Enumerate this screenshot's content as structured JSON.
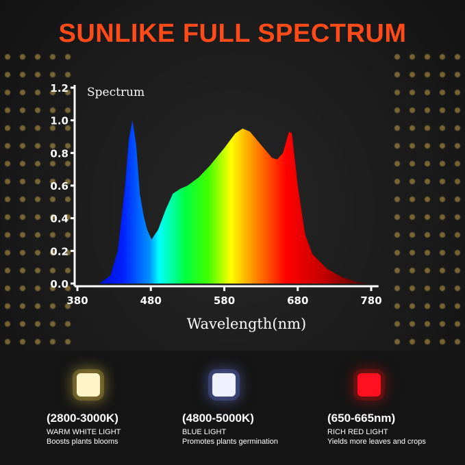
{
  "title": "SUNLIKE FULL SPECTRUM",
  "chart_data": {
    "type": "area",
    "title": "Spectrum",
    "xlabel": "Wavelength(nm)",
    "ylabel": "",
    "xlim": [
      380,
      790
    ],
    "ylim": [
      0,
      1.2
    ],
    "x_ticks": [
      "380",
      "480",
      "580",
      "680",
      "780"
    ],
    "y_ticks": [
      "0.0",
      "0.2",
      "0.4",
      "0.6",
      "0.8",
      "1.0",
      "1.2"
    ],
    "grid": false,
    "fill": "wavelength color gradient",
    "x": [
      410,
      425,
      435,
      445,
      450,
      455,
      460,
      465,
      470,
      475,
      481,
      490,
      500,
      510,
      520,
      530,
      545,
      560,
      580,
      595,
      605,
      615,
      630,
      645,
      652,
      660,
      668,
      672,
      680,
      690,
      700,
      720,
      740,
      760,
      775
    ],
    "y": [
      0,
      0.05,
      0.2,
      0.6,
      0.88,
      1.0,
      0.85,
      0.55,
      0.42,
      0.33,
      0.27,
      0.33,
      0.45,
      0.55,
      0.58,
      0.6,
      0.65,
      0.72,
      0.83,
      0.92,
      0.95,
      0.93,
      0.85,
      0.77,
      0.76,
      0.8,
      0.93,
      0.92,
      0.6,
      0.3,
      0.18,
      0.09,
      0.04,
      0.01,
      0
    ]
  },
  "features": [
    {
      "range": "(2800-3000K)",
      "name": "WARM WHITE LIGHT",
      "desc": "Boosts plants blooms",
      "color": "#fff4c8",
      "glow": "#b8a040"
    },
    {
      "range": "(4800-5000K)",
      "name": "BLUE LIGHT",
      "desc": "Promotes plants germination",
      "color": "#eef0ff",
      "glow": "#5a66b8"
    },
    {
      "range": "(650-665nm)",
      "name": "RICH RED LIGHT",
      "desc": "Yields more leaves and crops",
      "color": "#ff1020",
      "glow": "#a01010"
    }
  ]
}
